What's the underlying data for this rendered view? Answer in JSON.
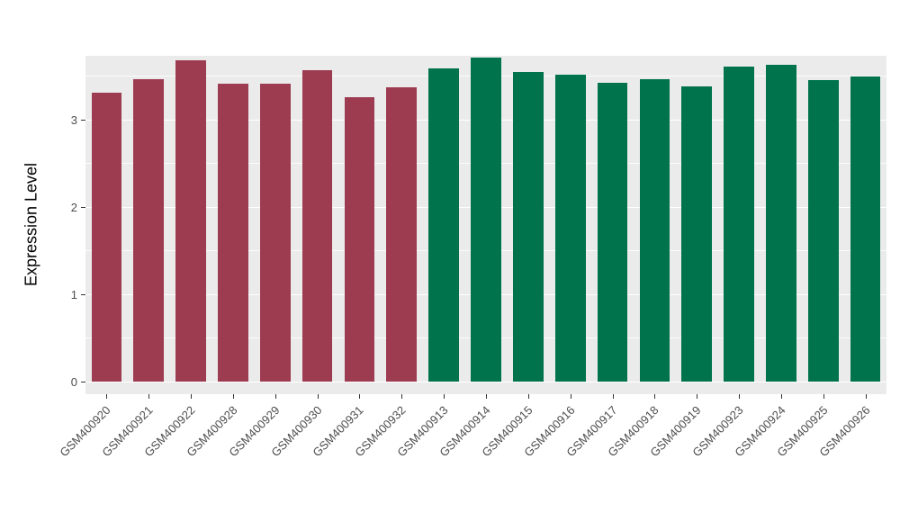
{
  "chart_data": {
    "type": "bar",
    "title": "",
    "xlabel": "",
    "ylabel": "Expression Level",
    "ylim": [
      0,
      3.73
    ],
    "yticks": [
      0,
      1,
      2,
      3
    ],
    "ytick_labels": [
      "0",
      "1",
      "2",
      "3"
    ],
    "minor_gridlines": [
      0.5,
      1.5,
      2.5,
      3.5
    ],
    "grid": true,
    "legend_position": "none",
    "panel_background": "#ebebeb",
    "grid_color": "#ffffff",
    "categories": [
      "GSM400920",
      "GSM400921",
      "GSM400922",
      "GSM400928",
      "GSM400929",
      "GSM400930",
      "GSM400931",
      "GSM400932",
      "GSM400913",
      "GSM400914",
      "GSM400915",
      "GSM400916",
      "GSM400917",
      "GSM400918",
      "GSM400919",
      "GSM400923",
      "GSM400924",
      "GSM400925",
      "GSM400926"
    ],
    "values": [
      3.31,
      3.46,
      3.68,
      3.41,
      3.41,
      3.57,
      3.26,
      3.37,
      3.59,
      3.71,
      3.54,
      3.51,
      3.42,
      3.46,
      3.38,
      3.61,
      3.63,
      3.45,
      3.49
    ],
    "bar_colors": [
      "#9d3b51",
      "#9d3b51",
      "#9d3b51",
      "#9d3b51",
      "#9d3b51",
      "#9d3b51",
      "#9d3b51",
      "#9d3b51",
      "#00734d",
      "#00734d",
      "#00734d",
      "#00734d",
      "#00734d",
      "#00734d",
      "#00734d",
      "#00734d",
      "#00734d",
      "#00734d",
      "#00734d"
    ],
    "group_colors": {
      "group1": "#9d3b51",
      "group2": "#00734d"
    }
  }
}
